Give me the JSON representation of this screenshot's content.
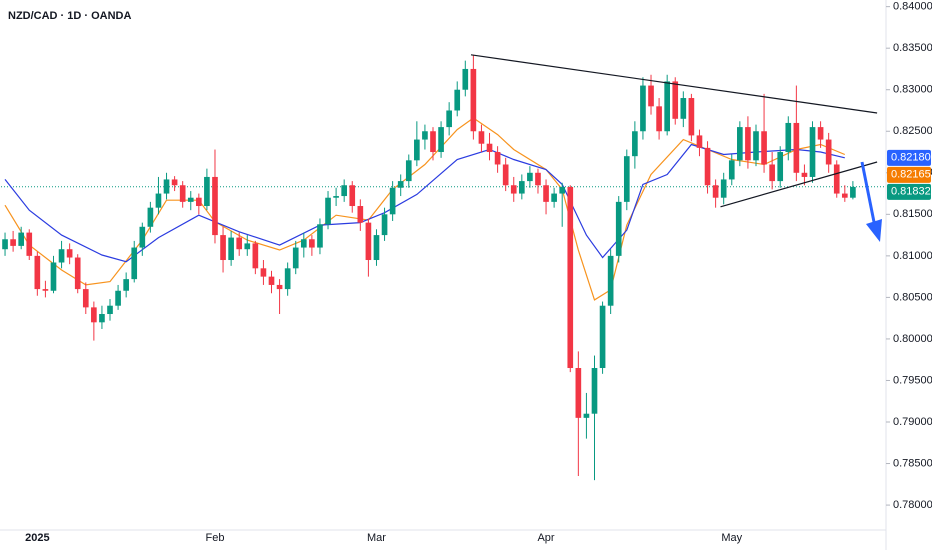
{
  "chart_data": {
    "type": "candlestick",
    "title": "NZD/CAD · 1D · OANDA",
    "categories": [
      null,
      null,
      null,
      null,
      "2025",
      null,
      null,
      null,
      null,
      null,
      null,
      null,
      null,
      null,
      null,
      null,
      null,
      null,
      null,
      null,
      null,
      null,
      null,
      null,
      null,
      null,
      "Feb",
      null,
      null,
      null,
      null,
      null,
      null,
      null,
      null,
      null,
      null,
      null,
      null,
      null,
      null,
      null,
      null,
      null,
      null,
      null,
      "Mar",
      null,
      null,
      null,
      null,
      null,
      null,
      null,
      null,
      null,
      null,
      null,
      null,
      null,
      null,
      null,
      null,
      null,
      null,
      null,
      null,
      "Apr",
      null,
      null,
      null,
      null,
      null,
      null,
      null,
      null,
      null,
      null,
      null,
      null,
      null,
      null,
      null,
      null,
      null,
      null,
      null,
      null,
      null,
      null,
      "May",
      null,
      null,
      null,
      null,
      null,
      null,
      null,
      null,
      null,
      null,
      null,
      null,
      null,
      null,
      null,
      null
    ],
    "ohlc": [
      [
        0.8108,
        0.8128,
        0.81,
        0.812
      ],
      [
        0.812,
        0.813,
        0.8105,
        0.8112
      ],
      [
        0.8112,
        0.8135,
        0.8108,
        0.8128
      ],
      [
        0.8128,
        0.8132,
        0.8095,
        0.81
      ],
      [
        0.81,
        0.8105,
        0.8052,
        0.806
      ],
      [
        0.806,
        0.807,
        0.805,
        0.8058
      ],
      [
        0.8058,
        0.81,
        0.8055,
        0.8092
      ],
      [
        0.8092,
        0.8118,
        0.8085,
        0.8108
      ],
      [
        0.8108,
        0.8115,
        0.809,
        0.8098
      ],
      [
        0.8098,
        0.8102,
        0.8055,
        0.806
      ],
      [
        0.806,
        0.8068,
        0.803,
        0.8038
      ],
      [
        0.8038,
        0.8045,
        0.7998,
        0.802
      ],
      [
        0.802,
        0.804,
        0.8012,
        0.803
      ],
      [
        0.803,
        0.8048,
        0.8022,
        0.804
      ],
      [
        0.804,
        0.8065,
        0.8035,
        0.8058
      ],
      [
        0.8058,
        0.808,
        0.805,
        0.8072
      ],
      [
        0.8072,
        0.8118,
        0.8068,
        0.811
      ],
      [
        0.811,
        0.814,
        0.81,
        0.8135
      ],
      [
        0.8135,
        0.8165,
        0.8128,
        0.8158
      ],
      [
        0.8158,
        0.8195,
        0.815,
        0.8175
      ],
      [
        0.8175,
        0.82,
        0.8168,
        0.8192
      ],
      [
        0.8192,
        0.8196,
        0.8178,
        0.8185
      ],
      [
        0.8185,
        0.819,
        0.8158,
        0.8165
      ],
      [
        0.8165,
        0.8178,
        0.8155,
        0.817
      ],
      [
        0.817,
        0.8175,
        0.815,
        0.816
      ],
      [
        0.816,
        0.8205,
        0.8155,
        0.8195
      ],
      [
        0.8195,
        0.8228,
        0.8115,
        0.8125
      ],
      [
        0.8125,
        0.8135,
        0.808,
        0.8095
      ],
      [
        0.8095,
        0.813,
        0.8088,
        0.8122
      ],
      [
        0.8122,
        0.8128,
        0.81,
        0.8108
      ],
      [
        0.8108,
        0.8125,
        0.81,
        0.8115
      ],
      [
        0.8115,
        0.8118,
        0.8078,
        0.8085
      ],
      [
        0.8085,
        0.8095,
        0.8065,
        0.8075
      ],
      [
        0.8075,
        0.8082,
        0.8055,
        0.8065
      ],
      [
        0.8065,
        0.8072,
        0.803,
        0.806
      ],
      [
        0.806,
        0.8092,
        0.8052,
        0.8085
      ],
      [
        0.8085,
        0.8118,
        0.8078,
        0.811
      ],
      [
        0.811,
        0.8128,
        0.8098,
        0.812
      ],
      [
        0.812,
        0.8125,
        0.81,
        0.811
      ],
      [
        0.811,
        0.8145,
        0.8102,
        0.8138
      ],
      [
        0.8138,
        0.8178,
        0.8132,
        0.817
      ],
      [
        0.817,
        0.8182,
        0.816,
        0.8172
      ],
      [
        0.8172,
        0.8192,
        0.8165,
        0.8185
      ],
      [
        0.8185,
        0.819,
        0.8152,
        0.816
      ],
      [
        0.816,
        0.8168,
        0.813,
        0.814
      ],
      [
        0.814,
        0.8145,
        0.8075,
        0.8095
      ],
      [
        0.8095,
        0.8132,
        0.8088,
        0.8125
      ],
      [
        0.8125,
        0.8158,
        0.8118,
        0.815
      ],
      [
        0.815,
        0.819,
        0.8142,
        0.8182
      ],
      [
        0.8182,
        0.8198,
        0.8172,
        0.819
      ],
      [
        0.819,
        0.8222,
        0.8182,
        0.8215
      ],
      [
        0.8215,
        0.8262,
        0.8208,
        0.824
      ],
      [
        0.824,
        0.8258,
        0.8228,
        0.825
      ],
      [
        0.825,
        0.8255,
        0.8215,
        0.8225
      ],
      [
        0.8225,
        0.8262,
        0.8218,
        0.8255
      ],
      [
        0.8255,
        0.8285,
        0.8245,
        0.8275
      ],
      [
        0.8275,
        0.831,
        0.8268,
        0.83
      ],
      [
        0.83,
        0.8335,
        0.8292,
        0.8325
      ],
      [
        0.8325,
        0.8342,
        0.824,
        0.825
      ],
      [
        0.825,
        0.8258,
        0.8225,
        0.8235
      ],
      [
        0.8235,
        0.8248,
        0.8215,
        0.8225
      ],
      [
        0.8225,
        0.8232,
        0.82,
        0.821
      ],
      [
        0.821,
        0.8218,
        0.8178,
        0.8185
      ],
      [
        0.8185,
        0.8195,
        0.8165,
        0.8175
      ],
      [
        0.8175,
        0.8198,
        0.8168,
        0.819
      ],
      [
        0.819,
        0.8208,
        0.8182,
        0.82
      ],
      [
        0.82,
        0.8205,
        0.8175,
        0.8185
      ],
      [
        0.8185,
        0.8192,
        0.815,
        0.8165
      ],
      [
        0.8165,
        0.8182,
        0.8158,
        0.8175
      ],
      [
        0.8175,
        0.8188,
        0.8135,
        0.8183
      ],
      [
        0.8183,
        0.8185,
        0.796,
        0.7965
      ],
      [
        0.7965,
        0.7985,
        0.7835,
        0.7905
      ],
      [
        0.7905,
        0.7935,
        0.788,
        0.791
      ],
      [
        0.791,
        0.798,
        0.783,
        0.7965
      ],
      [
        0.7965,
        0.8045,
        0.7958,
        0.804
      ],
      [
        0.804,
        0.8108,
        0.803,
        0.81
      ],
      [
        0.81,
        0.8172,
        0.8092,
        0.8165
      ],
      [
        0.8165,
        0.8228,
        0.8155,
        0.822
      ],
      [
        0.822,
        0.8262,
        0.8205,
        0.825
      ],
      [
        0.825,
        0.8315,
        0.824,
        0.8305
      ],
      [
        0.8305,
        0.8318,
        0.827,
        0.828
      ],
      [
        0.828,
        0.829,
        0.824,
        0.825
      ],
      [
        0.825,
        0.8318,
        0.8245,
        0.831
      ],
      [
        0.831,
        0.8315,
        0.8258,
        0.8265
      ],
      [
        0.8265,
        0.8298,
        0.8255,
        0.829
      ],
      [
        0.829,
        0.8295,
        0.8238,
        0.8245
      ],
      [
        0.8245,
        0.8252,
        0.822,
        0.823
      ],
      [
        0.823,
        0.8238,
        0.8175,
        0.8185
      ],
      [
        0.8185,
        0.8192,
        0.8158,
        0.817
      ],
      [
        0.817,
        0.82,
        0.8162,
        0.8192
      ],
      [
        0.8192,
        0.8222,
        0.8185,
        0.8215
      ],
      [
        0.8215,
        0.8262,
        0.8208,
        0.8255
      ],
      [
        0.8255,
        0.8268,
        0.8205,
        0.8215
      ],
      [
        0.8215,
        0.8258,
        0.8208,
        0.825
      ],
      [
        0.825,
        0.8295,
        0.82,
        0.821
      ],
      [
        0.821,
        0.8225,
        0.818,
        0.819
      ],
      [
        0.819,
        0.8232,
        0.8182,
        0.8225
      ],
      [
        0.8225,
        0.8268,
        0.8215,
        0.826
      ],
      [
        0.826,
        0.8305,
        0.819,
        0.82
      ],
      [
        0.82,
        0.821,
        0.8185,
        0.8195
      ],
      [
        0.8195,
        0.8262,
        0.8188,
        0.8255
      ],
      [
        0.8255,
        0.8262,
        0.823,
        0.824
      ],
      [
        0.824,
        0.8248,
        0.82,
        0.821
      ],
      [
        0.821,
        0.8215,
        0.817,
        0.8175
      ],
      [
        0.8175,
        0.8185,
        0.8165,
        0.817
      ],
      [
        0.817,
        0.819,
        0.8168,
        0.8183
      ]
    ],
    "up_color": "#089981",
    "down_color": "#f23645",
    "moving_averages": [
      {
        "color": "#f7931e",
        "x": [
          0,
          3,
          7,
          10,
          13,
          17,
          20,
          24,
          26,
          30,
          34,
          37,
          41,
          45,
          48,
          52,
          56,
          58,
          61,
          63,
          67,
          69,
          71,
          73,
          75,
          77,
          80,
          84,
          87,
          90,
          94,
          98,
          101,
          104
        ],
        "values": [
          0.8161,
          0.8113,
          0.8083,
          0.8065,
          0.8069,
          0.8119,
          0.8167,
          0.8167,
          0.8141,
          0.8119,
          0.8107,
          0.8119,
          0.8149,
          0.8143,
          0.818,
          0.821,
          0.8252,
          0.8266,
          0.8246,
          0.8228,
          0.8204,
          0.818,
          0.8107,
          0.8047,
          0.8059,
          0.8137,
          0.8198,
          0.824,
          0.8228,
          0.8216,
          0.821,
          0.8228,
          0.8234,
          0.8222
        ]
      },
      {
        "color": "#2b3ce0",
        "x": [
          0,
          3,
          7,
          12,
          15,
          19,
          24,
          29,
          34,
          39,
          44,
          47,
          51,
          56,
          60,
          63,
          67,
          69,
          72,
          74,
          77,
          79,
          82,
          85,
          89,
          93,
          98,
          101,
          104
        ],
        "values": [
          0.8192,
          0.8155,
          0.8125,
          0.8101,
          0.8093,
          0.8122,
          0.8149,
          0.8129,
          0.8113,
          0.8137,
          0.814,
          0.8152,
          0.8174,
          0.8216,
          0.8228,
          0.8216,
          0.8204,
          0.8186,
          0.8125,
          0.8098,
          0.8131,
          0.8186,
          0.8198,
          0.8234,
          0.8222,
          0.8225,
          0.8228,
          0.8225,
          0.8218
        ]
      }
    ],
    "trendlines": [
      {
        "x": [
          57.7,
          108
        ],
        "values": [
          0.8342,
          0.8272
        ]
      },
      {
        "x": [
          88.6,
          108
        ],
        "values": [
          0.8159,
          0.8213
        ]
      }
    ],
    "current_price": 0.81832,
    "price_labels": [
      {
        "value": 0.8218,
        "label": "0.82180",
        "color": "#2962ff"
      },
      {
        "value": 0.82165,
        "label": "0.82165",
        "color": "#f57c00"
      },
      {
        "value": 0.81832,
        "label": "0.81832",
        "color": "#089981"
      }
    ],
    "ylim": [
      0.777,
      0.8408
    ],
    "yticks": [
      {
        "value": 0.78,
        "label": "0.78000"
      },
      {
        "value": 0.785,
        "label": "0.78500"
      },
      {
        "value": 0.79,
        "label": "0.79000"
      },
      {
        "value": 0.795,
        "label": "0.79500"
      },
      {
        "value": 0.8,
        "label": "0.80000"
      },
      {
        "value": 0.805,
        "label": "0.80500"
      },
      {
        "value": 0.81,
        "label": "0.81000"
      },
      {
        "value": 0.815,
        "label": "0.81500"
      },
      {
        "value": 0.82,
        "label": "0.82000"
      },
      {
        "value": 0.825,
        "label": "0.82500"
      },
      {
        "value": 0.83,
        "label": "0.83000"
      },
      {
        "value": 0.835,
        "label": "0.83500"
      },
      {
        "value": 0.84,
        "label": "0.84000"
      }
    ],
    "grid": false
  }
}
